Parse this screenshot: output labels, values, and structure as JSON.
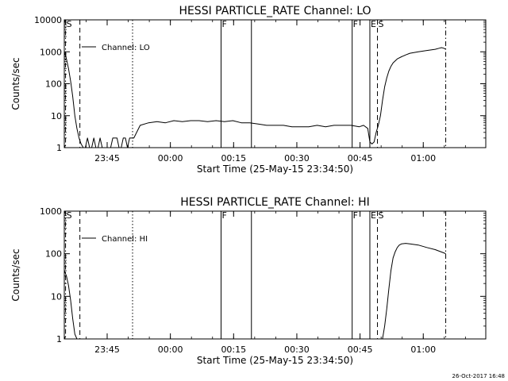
{
  "footer_timestamp": "26-Oct-2017 16:48",
  "chart_data": [
    {
      "type": "line",
      "title": "HESSI PARTICLE_RATE Channel: LO",
      "xlabel": "Start Time (25-May-15 23:34:50)",
      "ylabel": "Counts/sec",
      "yscale": "log",
      "ylim": [
        1,
        10000
      ],
      "xlim_minutes": [
        0,
        100
      ],
      "x_ticks": [
        {
          "t": 10.17,
          "label": "23:45"
        },
        {
          "t": 25.17,
          "label": "00:00"
        },
        {
          "t": 40.17,
          "label": "00:15"
        },
        {
          "t": 55.17,
          "label": "00:30"
        },
        {
          "t": 70.17,
          "label": "00:45"
        },
        {
          "t": 85.17,
          "label": "01:00"
        }
      ],
      "y_ticks": [
        {
          "v": 1,
          "label": "1"
        },
        {
          "v": 10,
          "label": "10"
        },
        {
          "v": 100,
          "label": "100"
        },
        {
          "v": 1000,
          "label": "1000"
        },
        {
          "v": 10000,
          "label": "10000"
        }
      ],
      "legend": "Channel: LO",
      "annotations": [
        {
          "t": 0.3,
          "label": "S",
          "style": "dashdot"
        },
        {
          "t": 3.7,
          "label": "",
          "style": "dashed"
        },
        {
          "t": 16.2,
          "label": "",
          "style": "dotted"
        },
        {
          "t": 37.2,
          "label": "F",
          "style": "solid"
        },
        {
          "t": 44.4,
          "label": "",
          "style": "solid"
        },
        {
          "t": 68.3,
          "label": "F",
          "style": "solid"
        },
        {
          "t": 72.5,
          "label": "E",
          "style": "solid"
        },
        {
          "t": 74.3,
          "label": "S",
          "style": "dashed"
        },
        {
          "t": 90.5,
          "label": "",
          "style": "dashdot"
        }
      ],
      "series": [
        {
          "x": [
            0,
            0.5,
            1,
            1.5,
            2,
            2.5,
            3,
            3.5,
            4,
            4.5,
            5,
            5.5,
            6,
            6.5,
            7,
            7.5,
            8,
            8.5,
            9,
            9.5,
            10,
            10.5,
            11,
            11.5,
            12,
            12.5,
            13,
            13.5,
            14,
            14.5,
            15,
            15.5,
            16,
            16.5,
            18,
            20,
            22,
            24,
            26,
            28,
            30,
            32,
            34,
            36,
            38,
            40,
            42,
            44,
            46,
            48,
            50,
            52,
            54,
            56,
            58,
            60,
            62,
            64,
            66,
            68,
            70,
            71,
            72,
            72.5,
            73,
            73.5,
            74,
            74.5,
            75,
            75.5,
            76,
            76.5,
            77,
            77.5,
            78,
            79,
            80,
            81,
            82,
            84,
            86,
            88,
            89,
            89.5,
            90,
            90.5
          ],
          "y": [
            1000,
            600,
            300,
            120,
            40,
            10,
            4,
            2,
            1.3,
            1,
            1,
            2,
            1,
            1,
            2,
            1,
            1,
            2,
            1,
            1,
            1,
            1,
            1,
            2,
            2,
            2,
            1,
            1,
            2,
            2,
            1,
            2,
            2,
            2,
            5,
            6,
            6.5,
            6,
            7,
            6.5,
            7,
            7,
            6.5,
            7,
            6.5,
            7,
            6,
            6,
            5.5,
            5,
            5,
            5,
            4.5,
            4.5,
            4.5,
            5,
            4.5,
            5,
            5,
            5,
            4.5,
            5,
            4,
            1.5,
            1.3,
            1.5,
            3,
            5,
            10,
            30,
            80,
            150,
            250,
            350,
            450,
            600,
            700,
            800,
            900,
            1000,
            1100,
            1200,
            1300,
            1350,
            1300,
            1200
          ]
        }
      ]
    },
    {
      "type": "line",
      "title": "HESSI PARTICLE_RATE Channel: HI",
      "xlabel": "Start Time (25-May-15 23:34:50)",
      "ylabel": "Counts/sec",
      "yscale": "log",
      "ylim": [
        1,
        1000
      ],
      "xlim_minutes": [
        0,
        100
      ],
      "x_ticks": [
        {
          "t": 10.17,
          "label": "23:45"
        },
        {
          "t": 25.17,
          "label": "00:00"
        },
        {
          "t": 40.17,
          "label": "00:15"
        },
        {
          "t": 55.17,
          "label": "00:30"
        },
        {
          "t": 70.17,
          "label": "00:45"
        },
        {
          "t": 85.17,
          "label": "01:00"
        }
      ],
      "y_ticks": [
        {
          "v": 1,
          "label": "1"
        },
        {
          "v": 10,
          "label": "10"
        },
        {
          "v": 100,
          "label": "100"
        },
        {
          "v": 1000,
          "label": "1000"
        }
      ],
      "legend": "Channel: HI",
      "annotations": [
        {
          "t": 0.3,
          "label": "S",
          "style": "dashdot"
        },
        {
          "t": 3.7,
          "label": "",
          "style": "dashed"
        },
        {
          "t": 16.2,
          "label": "",
          "style": "dotted"
        },
        {
          "t": 37.2,
          "label": "F",
          "style": "solid"
        },
        {
          "t": 44.4,
          "label": "",
          "style": "solid"
        },
        {
          "t": 68.3,
          "label": "F",
          "style": "solid"
        },
        {
          "t": 72.5,
          "label": "E",
          "style": "solid"
        },
        {
          "t": 74.3,
          "label": "S",
          "style": "dashed"
        },
        {
          "t": 90.5,
          "label": "",
          "style": "dashdot"
        }
      ],
      "series": [
        {
          "x": [
            0,
            0.5,
            1,
            1.5,
            2,
            2.5,
            3,
            75.5,
            76,
            76.5,
            77,
            77.5,
            78,
            78.5,
            79,
            79.5,
            80,
            81,
            82,
            84,
            86,
            88,
            90,
            90.5
          ],
          "y": [
            40,
            30,
            18,
            8,
            3,
            1.3,
            1,
            1,
            2,
            5,
            15,
            40,
            80,
            110,
            140,
            160,
            170,
            175,
            170,
            160,
            140,
            125,
            105,
            100
          ]
        }
      ]
    }
  ]
}
